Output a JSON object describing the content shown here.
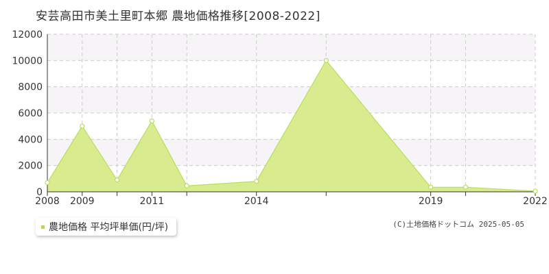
{
  "title": "安芸高田市美土里町本郷 農地価格推移[2008-2022]",
  "legend": {
    "label": "農地価格 平均坪単価(円/坪)"
  },
  "copyright": "(C)土地価格ドットコム 2025-05-05",
  "colors": {
    "fill": "#d8ec8f",
    "line": "#b8de55",
    "marker_stroke": "#b8de55",
    "marker_fill": "#ffffff",
    "band": "#f6f4f6",
    "grid": "#cccccc",
    "axis": "#333333",
    "legend_swatch": "#b5d94a"
  },
  "chart_data": {
    "type": "area",
    "title": "安芸高田市美土里町本郷 農地価格推移[2008-2022]",
    "xlabel": "",
    "ylabel": "",
    "xlim": [
      2008,
      2022
    ],
    "ylim": [
      0,
      12000
    ],
    "x_ticks": [
      2008,
      2009,
      2011,
      2014,
      2019,
      2022
    ],
    "y_ticks": [
      0,
      2000,
      4000,
      6000,
      8000,
      10000,
      12000
    ],
    "grid": true,
    "legend_position": "bottom-left",
    "series": [
      {
        "name": "農地価格 平均坪単価(円/坪)",
        "x": [
          2008,
          2009,
          2010,
          2011,
          2012,
          2013,
          2014,
          2015,
          2016,
          2017,
          2018,
          2019,
          2020,
          2021,
          2022
        ],
        "values": [
          700,
          5000,
          900,
          5400,
          450,
          null,
          800,
          null,
          10000,
          null,
          null,
          350,
          350,
          null,
          50
        ]
      }
    ]
  }
}
